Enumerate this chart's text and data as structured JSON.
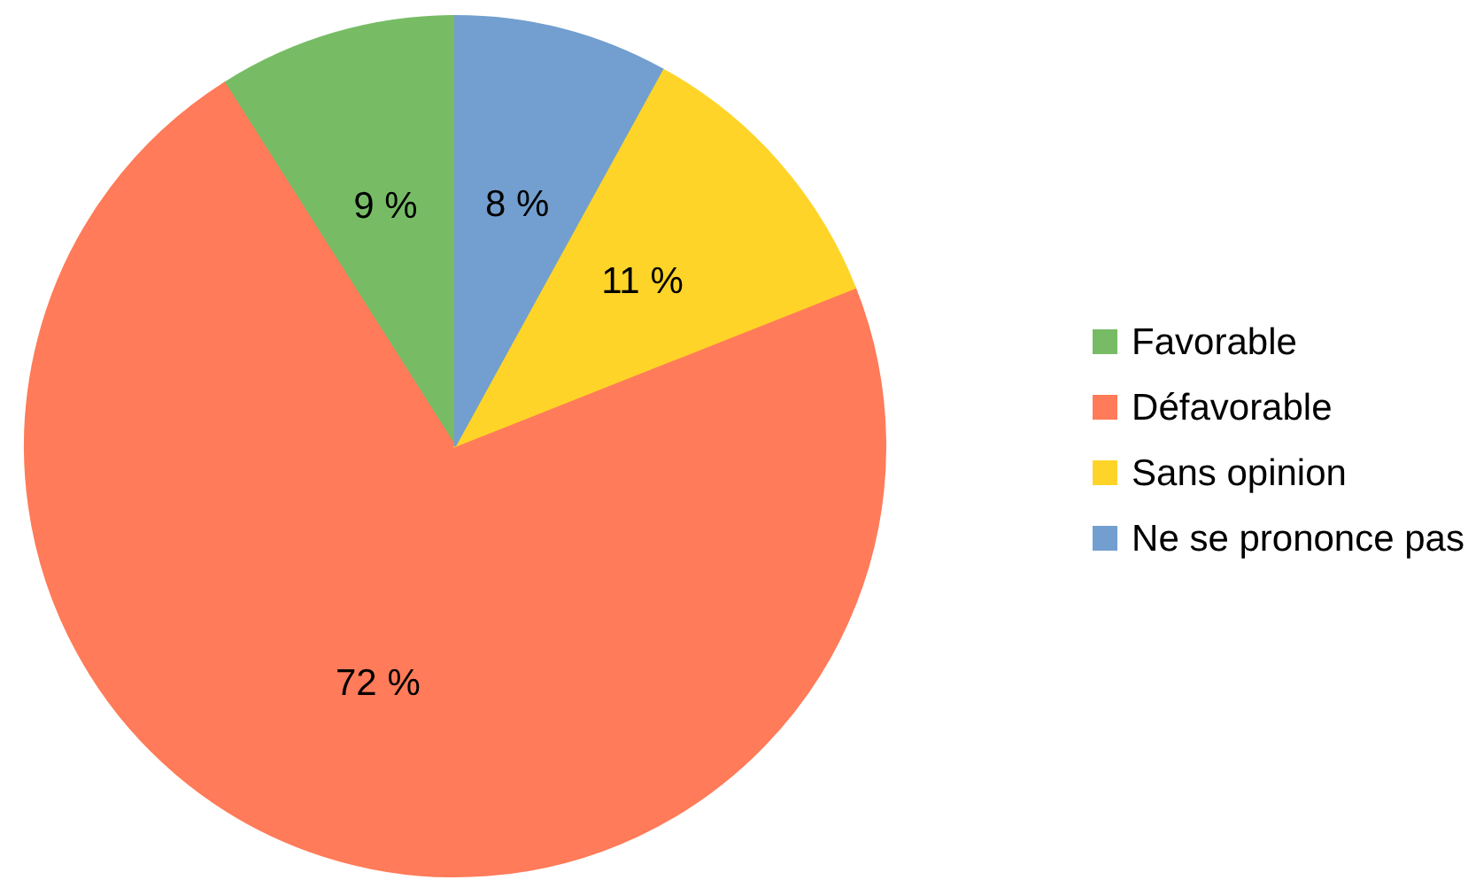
{
  "chart_data": {
    "type": "pie",
    "categories": [
      "Favorable",
      "Défavorable",
      "Sans opinion",
      "Ne se prononce pas"
    ],
    "values": [
      9,
      72,
      11,
      8
    ],
    "colors": [
      "#77bc65",
      "#ff7b59",
      "#ffd428",
      "#729fcf"
    ],
    "value_labels": [
      "9 %",
      "72 %",
      "11 %",
      "8 %"
    ],
    "legend": "right"
  }
}
